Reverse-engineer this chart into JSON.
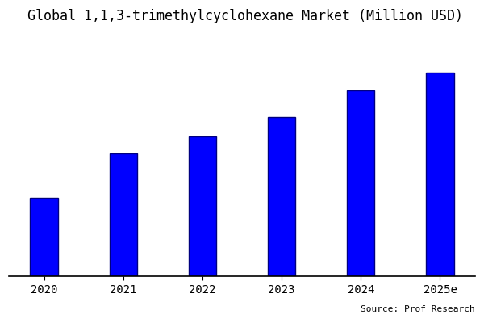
{
  "title": "Global 1,1,3-trimethylcyclohexane Market (Million USD)",
  "categories": [
    "2020",
    "2021",
    "2022",
    "2023",
    "2024",
    "2025e"
  ],
  "values": [
    32,
    50,
    57,
    65,
    76,
    83
  ],
  "bar_color": "#0000ff",
  "bar_edge_color": "#000080",
  "background_color": "#ffffff",
  "source_text": "Source: Prof Research",
  "title_fontsize": 12,
  "tick_fontsize": 10,
  "source_fontsize": 8,
  "bar_width": 0.35,
  "ylim": [
    0,
    100
  ]
}
